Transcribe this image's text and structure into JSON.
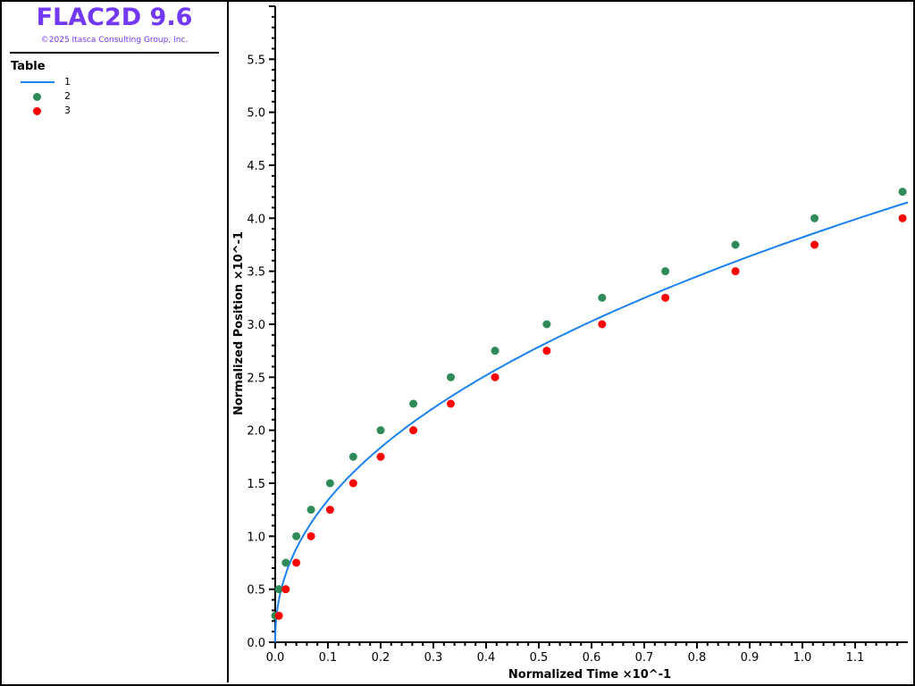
{
  "app": {
    "title": "FLAC2D 9.6",
    "copyright": "©2025 Itasca Consulting Group, Inc."
  },
  "legend": {
    "title": "Table",
    "items": [
      {
        "label": "1",
        "kind": "line",
        "color": "#1a82f0"
      },
      {
        "label": "2",
        "kind": "dot",
        "color": "#2e8b57"
      },
      {
        "label": "3",
        "kind": "dot",
        "color": "#ff0000"
      }
    ]
  },
  "chart_data": {
    "type": "scatter",
    "xlabel": "Normalized Time ×10^-1",
    "ylabel": "Normalized Position ×10^-1",
    "xlim": [
      0,
      1.2
    ],
    "ylim": [
      0,
      6.0
    ],
    "xticks": [
      "0.0",
      "0.1",
      "0.2",
      "0.3",
      "0.4",
      "0.5",
      "0.6",
      "0.7",
      "0.8",
      "0.9",
      "1.0",
      "1.1"
    ],
    "yticks": [
      "0.0",
      "0.5",
      "1.0",
      "1.5",
      "2.0",
      "2.5",
      "3.0",
      "3.5",
      "4.0",
      "4.5",
      "5.0",
      "5.5"
    ],
    "grid": false,
    "series": [
      {
        "name": "1",
        "type": "line",
        "color": "#1a82f0",
        "model": "y = 3.82 * x^0.455",
        "x_range": [
          0,
          1.2
        ]
      },
      {
        "name": "2",
        "type": "scatter",
        "color": "#2e8b57",
        "x": [
          0.0,
          0.007,
          0.02,
          0.04,
          0.068,
          0.104,
          0.148,
          0.2,
          0.262,
          0.333,
          0.417,
          0.515,
          0.62,
          0.74,
          0.873,
          1.023,
          1.19
        ],
        "y": [
          0.25,
          0.5,
          0.75,
          1.0,
          1.25,
          1.5,
          1.75,
          2.0,
          2.25,
          2.5,
          2.75,
          3.0,
          3.25,
          3.5,
          3.75,
          4.0,
          4.25
        ]
      },
      {
        "name": "3",
        "type": "scatter",
        "color": "#ff0000",
        "x": [
          0.007,
          0.02,
          0.04,
          0.068,
          0.104,
          0.148,
          0.2,
          0.262,
          0.333,
          0.417,
          0.515,
          0.62,
          0.74,
          0.873,
          1.023,
          1.19
        ],
        "y": [
          0.25,
          0.5,
          0.75,
          1.0,
          1.25,
          1.5,
          1.75,
          2.0,
          2.25,
          2.5,
          2.75,
          3.0,
          3.25,
          3.5,
          3.75,
          4.0
        ]
      }
    ]
  }
}
